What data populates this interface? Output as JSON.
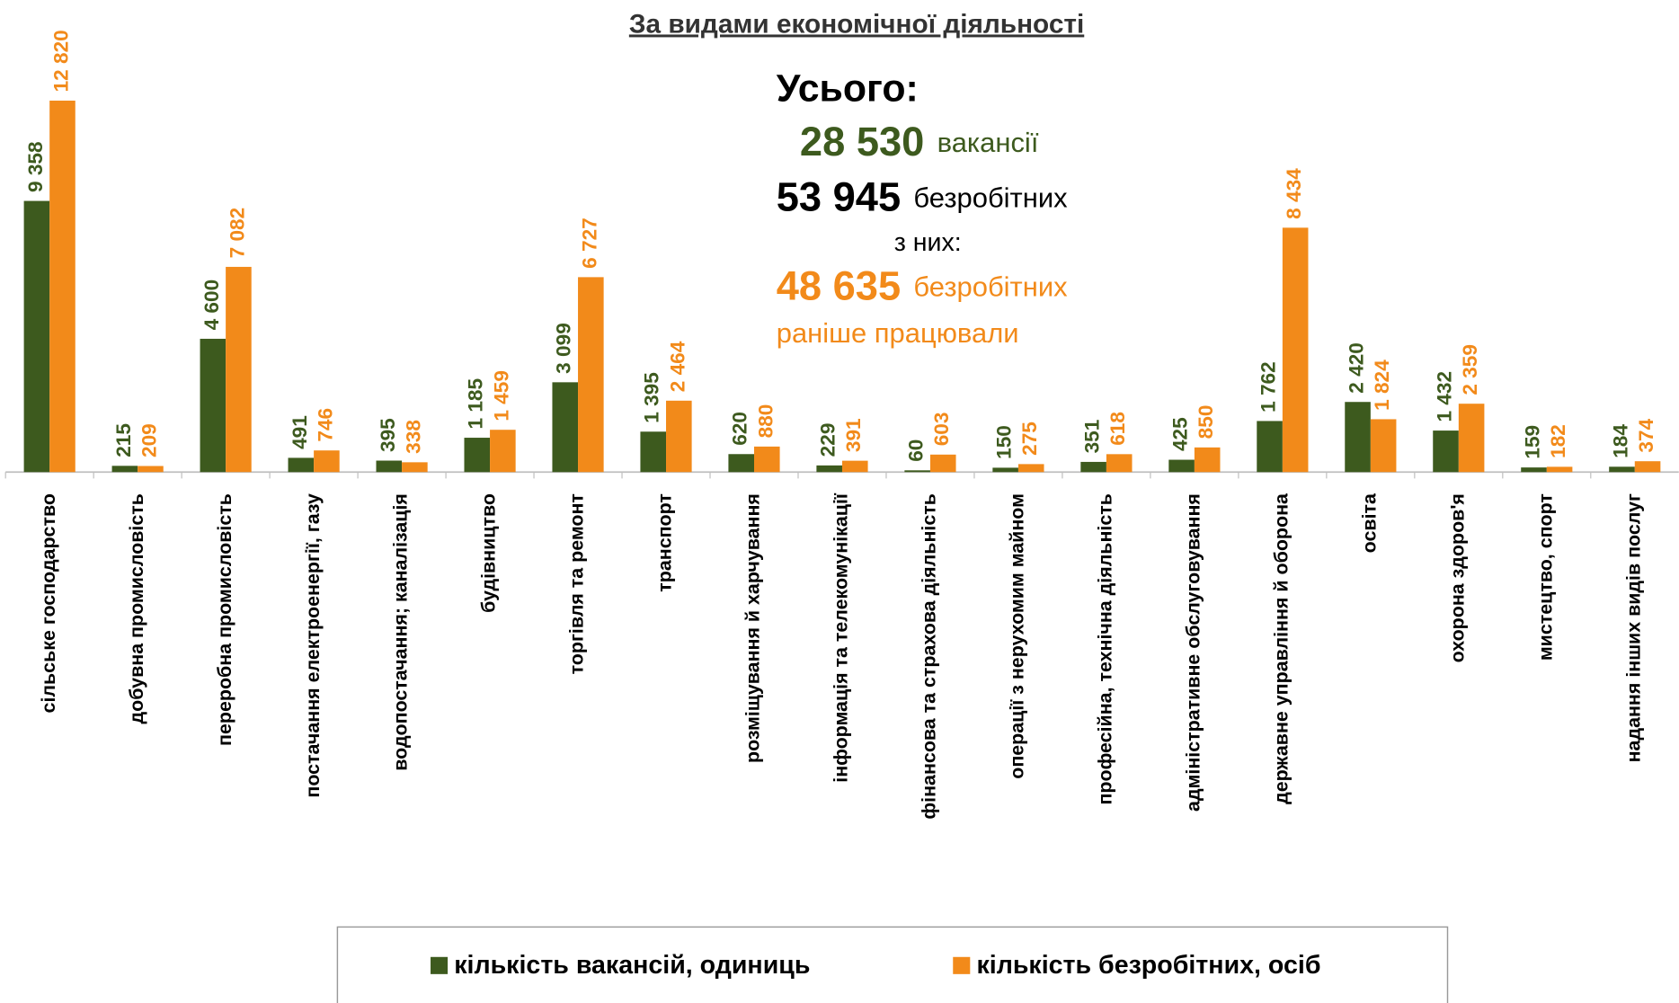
{
  "chart_data": {
    "type": "bar",
    "title": "За видами економічної діяльності",
    "categories": [
      "сільське господарство",
      "добувна промисловість",
      "переробна промисловість",
      "постачання електроенергії, газу",
      "водопостачання; каналізація",
      "будівництво",
      "торгівля та ремонт",
      "транспорт",
      "розміщування й харчування",
      "інформація та телекомунікації",
      "фінансова та страхова діяльність",
      "операції з нерухомим майном",
      "професійна, технічна діяльність",
      "адміністративне обслуговування",
      "державне управління й оборона",
      "освіта",
      "охорона здоров'я",
      "мистецтво, спорт",
      "надання інших видів послуг"
    ],
    "series": [
      {
        "name": "кількість вакансій, одиниць",
        "color": "#3d5a1e",
        "values": [
          9358,
          215,
          4600,
          491,
          395,
          1185,
          3099,
          1395,
          620,
          229,
          60,
          150,
          351,
          425,
          1762,
          2420,
          1432,
          159,
          184
        ],
        "value_labels": [
          "9 358",
          "215",
          "4 600",
          "491",
          "395",
          "1 185",
          "3 099",
          "1 395",
          "620",
          "229",
          "60",
          "150",
          "351",
          "425",
          "1 762",
          "2 420",
          "1 432",
          "159",
          "184"
        ]
      },
      {
        "name": "кількість безробітних, осіб",
        "color": "#f28a1a",
        "values": [
          12820,
          209,
          7082,
          746,
          338,
          1459,
          6727,
          2464,
          880,
          391,
          603,
          275,
          618,
          850,
          8434,
          1824,
          2359,
          182,
          374
        ],
        "value_labels": [
          "12 820",
          "209",
          "7 082",
          "746",
          "338",
          "1 459",
          "6 727",
          "2 464",
          "880",
          "391",
          "603",
          "275",
          "618",
          "850",
          "8 434",
          "1 824",
          "2 359",
          "182",
          "374"
        ]
      }
    ],
    "annotations": {
      "total": "Усього:",
      "vacancies_value": "28 530",
      "vacancies_label": "вакансії",
      "unemployed_value": "53 945",
      "unemployed_label": "безробітних",
      "of_them": "з них:",
      "previously_value": "48 635",
      "previously_label": "безробітних",
      "previously_note": "раніше працювали"
    }
  }
}
